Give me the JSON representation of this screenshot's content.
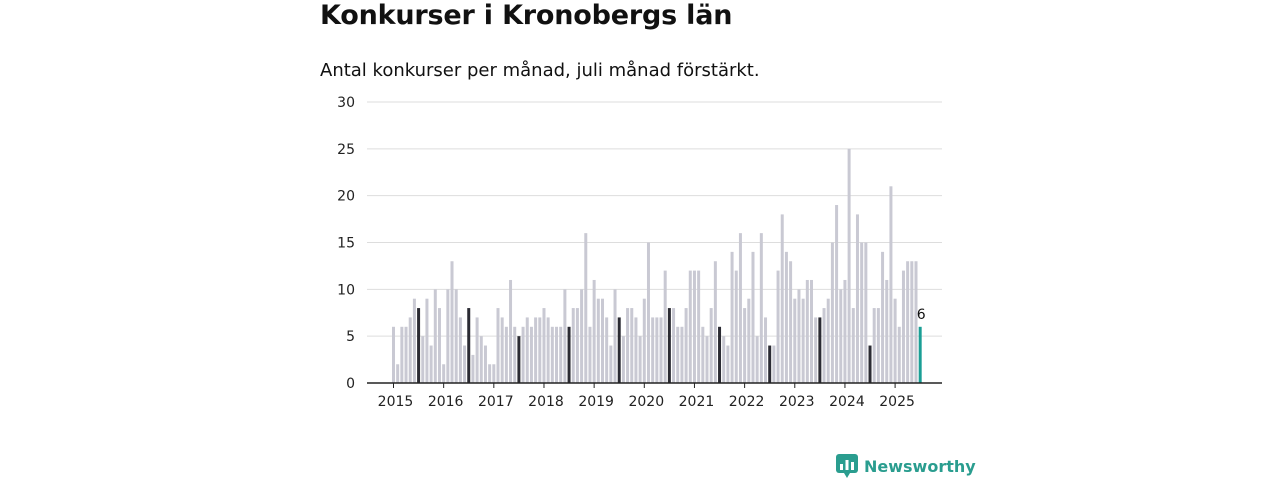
{
  "title": "Konkurser i Kronobergs län",
  "subtitle": "Antal konkurser per månad, juli månad förstärkt.",
  "brand": {
    "name": "Newsworthy",
    "icon": "bar-chart-speech-icon",
    "color": "#2a9d8f"
  },
  "colors": {
    "regular": "#c9c9d3",
    "july": "#2b2b33",
    "latest": "#1a9e95",
    "axis": "#222222",
    "grid": "#dddddd"
  },
  "chart_data": {
    "type": "bar",
    "title": "Konkurser i Kronobergs län",
    "subtitle": "Antal konkurser per månad, juli månad förstärkt.",
    "start": "2015-01",
    "ylim": [
      0,
      30
    ],
    "yticks": [
      0,
      5,
      10,
      15,
      20,
      25,
      30
    ],
    "xticks": [
      "2015",
      "2016",
      "2017",
      "2018",
      "2019",
      "2020",
      "2021",
      "2022",
      "2023",
      "2024",
      "2025"
    ],
    "grid": true,
    "highlight": "july",
    "latest_label": "6",
    "values": [
      6,
      2,
      6,
      6,
      7,
      9,
      8,
      5,
      9,
      4,
      10,
      8,
      2,
      10,
      13,
      10,
      7,
      4,
      8,
      3,
      7,
      5,
      4,
      2,
      2,
      8,
      7,
      6,
      11,
      6,
      5,
      6,
      7,
      6,
      7,
      7,
      8,
      7,
      6,
      6,
      6,
      10,
      6,
      8,
      8,
      10,
      16,
      6,
      11,
      9,
      9,
      7,
      4,
      10,
      7,
      5,
      8,
      8,
      7,
      5,
      9,
      15,
      7,
      7,
      7,
      12,
      8,
      8,
      6,
      6,
      8,
      12,
      12,
      12,
      6,
      5,
      8,
      13,
      6,
      5,
      4,
      14,
      12,
      16,
      8,
      9,
      14,
      5,
      16,
      7,
      4,
      4,
      12,
      18,
      14,
      13,
      9,
      10,
      9,
      11,
      11,
      7,
      7,
      8,
      9,
      15,
      19,
      10,
      11,
      25,
      8,
      18,
      15,
      15,
      4,
      8,
      8,
      14,
      11,
      21,
      9,
      6,
      12,
      13,
      13,
      13,
      6
    ]
  }
}
